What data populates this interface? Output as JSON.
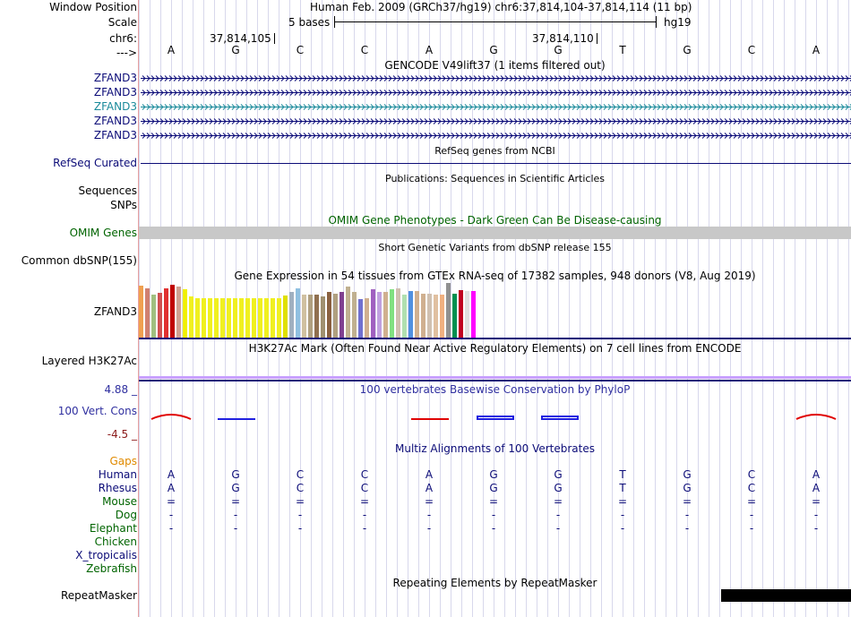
{
  "header": {
    "window_position_label": "Window Position",
    "assembly_text": "Human Feb. 2009 (GRCh37/hg19)   chr6:37,814,104-37,814,114 (11 bp)",
    "scale_label": "Scale",
    "scale_text": "5 bases",
    "scale_db": "hg19",
    "chrom_label": "chr6:",
    "pos1": "37,814,105",
    "pos2": "37,814,110",
    "strand_label": "--->"
  },
  "bases": [
    "A",
    "G",
    "C",
    "C",
    "A",
    "G",
    "G",
    "T",
    "G",
    "C",
    "A"
  ],
  "tracks": {
    "gencode_title": "GENCODE V49lift37 (1 items filtered out)",
    "gencode_genes": [
      {
        "label": "ZFAND3",
        "color": "#0c0c78"
      },
      {
        "label": "ZFAND3",
        "color": "#0c0c78"
      },
      {
        "label": "ZFAND3",
        "color": "#1a8a9a"
      },
      {
        "label": "ZFAND3",
        "color": "#0c0c78"
      },
      {
        "label": "ZFAND3",
        "color": "#0c0c78"
      }
    ],
    "refseq_title": "RefSeq genes from NCBI",
    "refseq_label": "RefSeq Curated",
    "pubs_title": "Publications: Sequences in Scientific Articles",
    "sequences_label": "Sequences",
    "snps_label": "SNPs",
    "omim_title": "OMIM Gene Phenotypes - Dark Green Can Be Disease-causing",
    "omim_label": "OMIM Genes",
    "dbsnp_title": "Short Genetic Variants from dbSNP release 155",
    "dbsnp_label": "Common dbSNP(155)",
    "gtex_title": "Gene Expression in 54 tissues from GTEx RNA-seq of 17382 samples, 948 donors (V8, Aug 2019)",
    "gtex_label": "ZFAND3",
    "h3k27_title": "H3K27Ac Mark (Often Found Near Active Regulatory Elements) on 7 cell lines from ENCODE",
    "h3k27_label": "Layered H3K27Ac",
    "cons_title": "100 vertebrates Basewise Conservation by PhyloP",
    "cons_label": "100 Vert. Cons",
    "cons_max": "4.88 _",
    "cons_min": "-4.5 _",
    "multiz_title": "Multiz Alignments of 100 Vertebrates",
    "repeat_title": "Repeating Elements by RepeatMasker",
    "repeat_label": "RepeatMasker"
  },
  "species": [
    {
      "name": "Gaps",
      "color": "#e08a00",
      "row": ""
    },
    {
      "name": "Human",
      "color": "#0c0c78",
      "row": "AGCCAGGTGCA"
    },
    {
      "name": "Rhesus",
      "color": "#0c0c78",
      "row": "AGCCAGGTGCA"
    },
    {
      "name": "Mouse",
      "color": "#006400",
      "row": "==========="
    },
    {
      "name": "Dog",
      "color": "#006400",
      "row": "-----------"
    },
    {
      "name": "Elephant",
      "color": "#006400",
      "row": "-----------"
    },
    {
      "name": "Chicken",
      "color": "#006400",
      "row": ""
    },
    {
      "name": "X_tropicalis",
      "color": "#0c0c78",
      "row": ""
    },
    {
      "name": "Zebrafish",
      "color": "#006400",
      "row": ""
    }
  ],
  "gtex_values": [
    0.95,
    0.9,
    0.78,
    0.82,
    0.9,
    0.97,
    0.93,
    0.88,
    0.75,
    0.72,
    0.72,
    0.72,
    0.72,
    0.72,
    0.72,
    0.72,
    0.72,
    0.72,
    0.72,
    0.72,
    0.72,
    0.72,
    0.72,
    0.77,
    0.83,
    0.9,
    0.78,
    0.78,
    0.78,
    0.76,
    0.83,
    0.8,
    0.84,
    0.93,
    0.84,
    0.7,
    0.72,
    0.88,
    0.84,
    0.84,
    0.88,
    0.9,
    0.78,
    0.85,
    0.85,
    0.8,
    0.8,
    0.78,
    0.78,
    1.0,
    0.8,
    0.87,
    0.85,
    0.85
  ],
  "gtex_colors": [
    "#f0a050",
    "#d08070",
    "#a0c080",
    "#d05050",
    "#e03030",
    "#c00000",
    "#d0a090",
    "#f0f000",
    "#f0f020",
    "#f0f020",
    "#f0f020",
    "#f0f020",
    "#f0f020",
    "#f0f020",
    "#f0f020",
    "#f0f020",
    "#f0f020",
    "#f0f020",
    "#f0f020",
    "#f0f020",
    "#f0f020",
    "#f0f020",
    "#f0f020",
    "#e0e000",
    "#a0b0c0",
    "#90c0e0",
    "#d0c0a0",
    "#b0a080",
    "#907050",
    "#a09070",
    "#8a6040",
    "#b0a080",
    "#804090",
    "#c0b090",
    "#c0b090",
    "#7070d0",
    "#d0b090",
    "#a060c0",
    "#c0a0e0",
    "#d0b090",
    "#80e080",
    "#d0c0b0",
    "#b0e0b0",
    "#5090e0",
    "#d0b090",
    "#d0b090",
    "#d0c0b0",
    "#e0c0a0",
    "#f0b080",
    "#909090",
    "#009050",
    "#c00020",
    "#e0e0e0",
    "#ff00ff"
  ],
  "cons_blips": [
    {
      "base": 0,
      "color": "red",
      "dir": "up"
    },
    {
      "base": 1,
      "color": "blue",
      "dir": "flat"
    },
    {
      "base": 4,
      "color": "red",
      "dir": "flat"
    },
    {
      "base": 5,
      "color": "blue",
      "dir": "box"
    },
    {
      "base": 6,
      "color": "blue",
      "dir": "box"
    },
    {
      "base": 10,
      "color": "red",
      "dir": "up"
    }
  ],
  "colors": {
    "navy": "#0c0c78",
    "omim_green": "#006400",
    "omim_bar": "#c8c8c8",
    "cons_blue": "#3030a0",
    "cons_red": "#8b1a1a",
    "gaps_orange": "#e08a00",
    "h3k27_pink": "#c8a0ff",
    "repeat_black": "#000000"
  }
}
